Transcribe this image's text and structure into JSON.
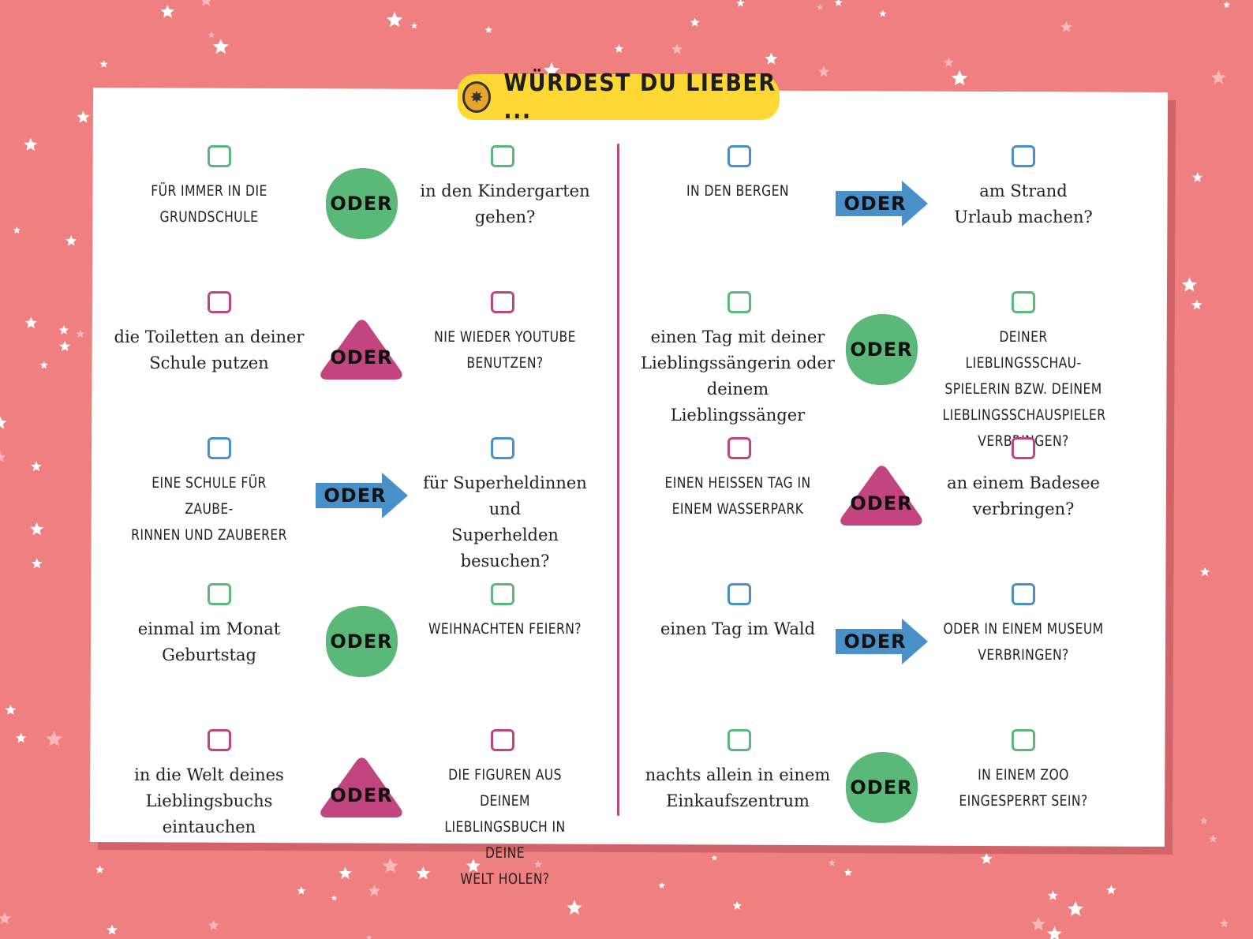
{
  "title": "WÜRDEST DU LIEBER ...",
  "colors": {
    "background": "#f08080",
    "green": "#5ab878",
    "magenta": "#c2457f",
    "blue": "#4a90c8",
    "yellow": "#fdd835"
  },
  "connector_label": "ODER",
  "rows": [
    {
      "left": "FÜR IMMER IN DIE\nGRUNDSCHULE",
      "right": "in den Kindergarten\ngehen?",
      "left_caps": true,
      "right_caps": false,
      "shape": "circle",
      "color": "green"
    },
    {
      "left": "die Toiletten an deiner\nSchule putzen",
      "right": "NIE WIEDER YOUTUBE\nBENUTZEN?",
      "left_caps": false,
      "right_caps": true,
      "shape": "triangle",
      "color": "magenta"
    },
    {
      "left": "EINE SCHULE FÜR ZAUBE-\nRINNEN UND ZAUBERER",
      "right": "für Superheldinnen und\nSuperhelden besuchen?",
      "left_caps": true,
      "right_caps": false,
      "shape": "arrow",
      "color": "blue"
    },
    {
      "left": "einmal im Monat Geburtstag",
      "right": "WEIHNACHTEN FEIERN?",
      "left_caps": false,
      "right_caps": true,
      "shape": "circle",
      "color": "green"
    },
    {
      "left": "in die Welt deines\nLieblingsbuchs eintauchen",
      "right": "DIE FIGUREN AUS DEINEM\nLIEBLINGSBUCH IN DEINE\nWELT HOLEN?",
      "left_caps": false,
      "right_caps": true,
      "shape": "triangle",
      "color": "magenta"
    },
    {
      "left": "IN DEN BERGEN",
      "right": "am Strand\nUrlaub machen?",
      "left_caps": true,
      "right_caps": false,
      "shape": "arrow",
      "color": "blue"
    },
    {
      "left": "einen Tag mit deiner\nLieblingssängerin oder\ndeinem Lieblingssänger",
      "right": "DEINER LIEBLINGSSCHAU-\nSPIELERIN BZW. DEINEM\nLIEBLINGSSCHAUSPIELER\nVERBRINGEN?",
      "left_caps": false,
      "right_caps": true,
      "shape": "circle",
      "color": "green"
    },
    {
      "left": "EINEN HEISSEN TAG IN\nEINEM WASSERPARK",
      "right": "an einem Badesee\nverbringen?",
      "left_caps": true,
      "right_caps": false,
      "shape": "triangle",
      "color": "magenta"
    },
    {
      "left": "einen Tag im Wald",
      "right": "ODER IN EINEM MUSEUM\nVERBRINGEN?",
      "left_caps": false,
      "right_caps": true,
      "shape": "arrow",
      "color": "blue"
    },
    {
      "left": "nachts allein in einem\nEinkaufszentrum",
      "right": "IN EINEM ZOO\nEINGESPERRT SEIN?",
      "left_caps": false,
      "right_caps": true,
      "shape": "circle",
      "color": "green"
    }
  ]
}
